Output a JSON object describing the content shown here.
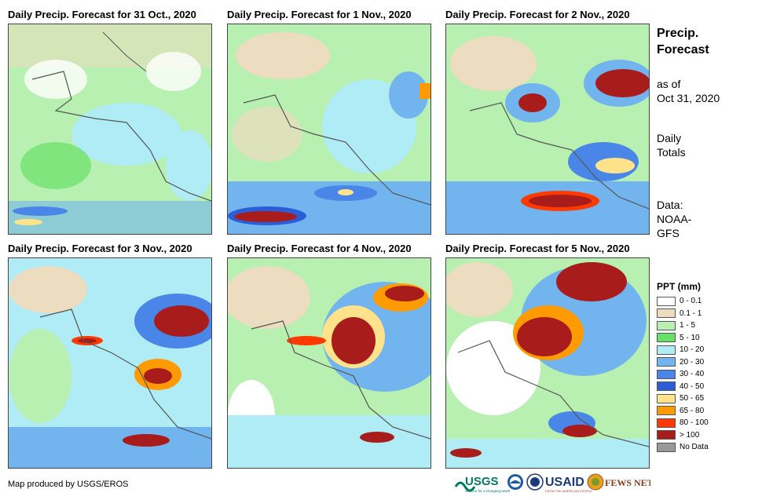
{
  "panels": [
    {
      "title": "Daily Precip. Forecast for 31 Oct., 2020"
    },
    {
      "title": "Daily Precip. Forecast for 1 Nov., 2020"
    },
    {
      "title": "Daily Precip. Forecast for 2 Nov., 2020"
    },
    {
      "title": "Daily Precip. Forecast for 3 Nov., 2020"
    },
    {
      "title": "Daily Precip. Forecast for 4 Nov., 2020"
    },
    {
      "title": "Daily Precip. Forecast for 5 Nov., 2020"
    }
  ],
  "sidebar": {
    "title_line1": "Precip.",
    "title_line2": "Forecast",
    "asof_line1": "as of",
    "asof_line2": "Oct 31, 2020",
    "daily_line1": "Daily",
    "daily_line2": "Totals",
    "data_line1": "Data:",
    "data_line2": "NOAA-",
    "data_line3": "GFS"
  },
  "legend": {
    "title": "PPT (mm)",
    "items": [
      {
        "label": "0 - 0.1",
        "color": "#ffffff"
      },
      {
        "label": "0.1 - 1",
        "color": "#ecdcc0"
      },
      {
        "label": "1 - 5",
        "color": "#b7f0b0"
      },
      {
        "label": "5 - 10",
        "color": "#66e066"
      },
      {
        "label": "10 - 20",
        "color": "#b0ecf6"
      },
      {
        "label": "20 - 30",
        "color": "#72b4ee"
      },
      {
        "label": "30 - 40",
        "color": "#4a86e8"
      },
      {
        "label": "40 - 50",
        "color": "#2a5ed8"
      },
      {
        "label": "50 - 65",
        "color": "#ffe28a"
      },
      {
        "label": "65 - 80",
        "color": "#ff9a00"
      },
      {
        "label": "80 - 100",
        "color": "#ff3a00"
      },
      {
        "label": "> 100",
        "color": "#a81c1c"
      },
      {
        "label": "No Data",
        "color": "#999999"
      }
    ]
  },
  "credit": "Map produced by USGS/EROS",
  "logos": {
    "usgs": "USGS",
    "usgs_tagline": "science for a changing world",
    "usaid": "USAID",
    "usaid_tagline": "FROM THE AMERICAN PEOPLE",
    "fewsnet": "FEWS NET"
  }
}
